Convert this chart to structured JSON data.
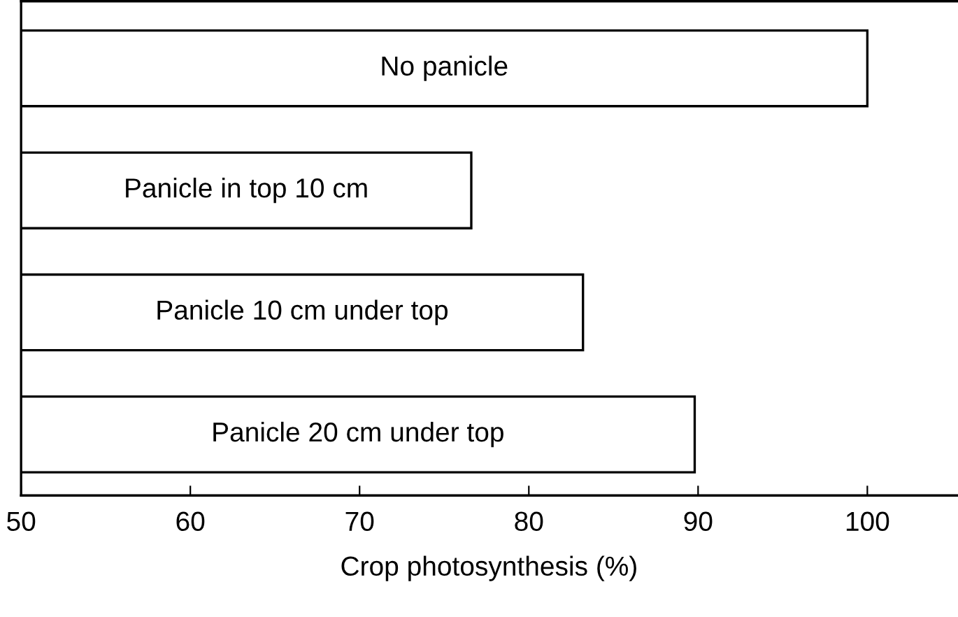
{
  "chart_data": {
    "type": "bar",
    "orientation": "horizontal",
    "xlabel": "Crop photosynthesis (%)",
    "categories": [
      "No panicle",
      "Panicle in top 10 cm",
      "Panicle 10 cm under top",
      "Panicle 20 cm under top"
    ],
    "values": [
      100,
      76.6,
      83.2,
      89.8
    ],
    "color": "#ffffff",
    "xlim": [
      50,
      105.3
    ],
    "xticks": [
      50,
      60,
      70,
      80,
      90,
      100
    ],
    "grid": false,
    "legend": false
  }
}
